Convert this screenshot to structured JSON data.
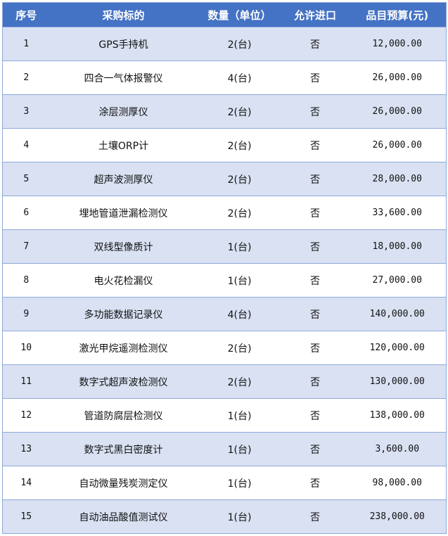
{
  "colors": {
    "header_bg": "#4472C4",
    "header_text": "#FFFFFF",
    "band_row": "#D9E1F2",
    "border": "#8EA9DB"
  },
  "table": {
    "headers": [
      "序号",
      "采购标的",
      "数量（单位）",
      "允许进口",
      "品目预算(元)"
    ],
    "rows": [
      [
        "1",
        "GPS手持机",
        "2(台)",
        "否",
        "12,000.00"
      ],
      [
        "2",
        "四合一气体报警仪",
        "4(台)",
        "否",
        "26,000.00"
      ],
      [
        "3",
        "涂层测厚仪",
        "2(台)",
        "否",
        "26,000.00"
      ],
      [
        "4",
        "土壤ORP计",
        "2(台)",
        "否",
        "26,000.00"
      ],
      [
        "5",
        "超声波测厚仪",
        "2(台)",
        "否",
        "28,000.00"
      ],
      [
        "6",
        "埋地管道泄漏检测仪",
        "2(台)",
        "否",
        "33,600.00"
      ],
      [
        "7",
        "双线型像质计",
        "1(台)",
        "否",
        "18,000.00"
      ],
      [
        "8",
        "电火花检漏仪",
        "1(台)",
        "否",
        "27,000.00"
      ],
      [
        "9",
        "多功能数据记录仪",
        "4(台)",
        "否",
        "140,000.00"
      ],
      [
        "10",
        "激光甲烷遥测检测仪",
        "2(台)",
        "否",
        "120,000.00"
      ],
      [
        "11",
        "数字式超声波检测仪",
        "2(台)",
        "否",
        "130,000.00"
      ],
      [
        "12",
        "管道防腐层检测仪",
        "1(台)",
        "否",
        "138,000.00"
      ],
      [
        "13",
        "数字式黑白密度计",
        "1(台)",
        "否",
        "3,600.00"
      ],
      [
        "14",
        "自动微量残炭测定仪",
        "1(台)",
        "否",
        "98,000.00"
      ],
      [
        "15",
        "自动油品酸值测试仪",
        "1(台)",
        "否",
        "238,000.00"
      ]
    ]
  }
}
